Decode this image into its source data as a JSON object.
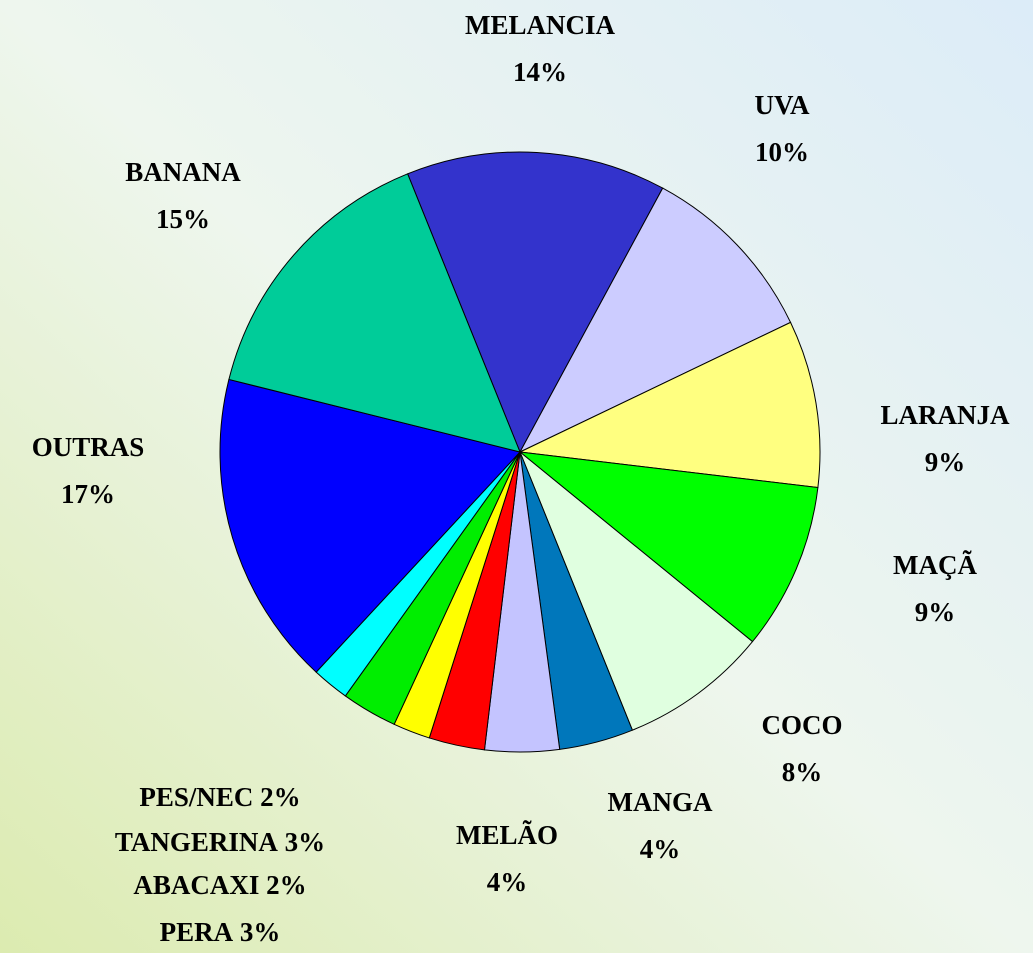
{
  "chart_data": {
    "type": "pie",
    "categories": [
      "MELANCIA",
      "UVA",
      "LARANJA",
      "MAÇÃ",
      "COCO",
      "MANGA",
      "MELÃO",
      "PERA",
      "ABACAXI",
      "TANGERINA",
      "PES/NEC",
      "OUTRAS",
      "BANANA"
    ],
    "values": [
      14,
      10,
      9,
      9,
      8,
      4,
      4,
      3,
      2,
      3,
      2,
      17,
      15
    ],
    "value_labels": [
      "14%",
      "10%",
      "9%",
      "9%",
      "8%",
      "4%",
      "4%",
      "3%",
      "2%",
      "3%",
      "2%",
      "17%",
      "15%"
    ],
    "colors": [
      "#3333cc",
      "#ccccff",
      "#ffff80",
      "#00ff00",
      "#e0ffe0",
      "#0077bb",
      "#c4c4ff",
      "#ff0000",
      "#ffff00",
      "#00ee00",
      "#00ffff",
      "#0000ff",
      "#00cc99"
    ]
  }
}
